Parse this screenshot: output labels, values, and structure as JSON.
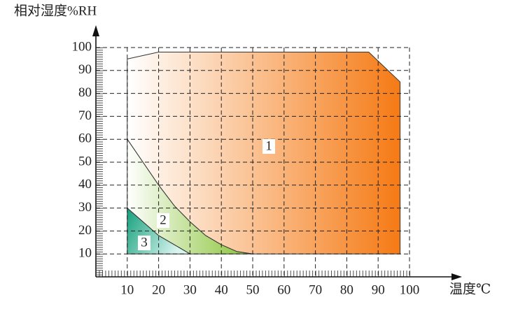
{
  "chart_data": {
    "type": "region",
    "y_label": "相对湿度%RH",
    "x_label": "温度℃",
    "xlim": [
      0,
      100
    ],
    "ylim": [
      0,
      100
    ],
    "xticks": [
      10,
      20,
      30,
      40,
      50,
      60,
      70,
      80,
      90,
      100
    ],
    "yticks": [
      10,
      20,
      30,
      40,
      50,
      60,
      70,
      80,
      90,
      100
    ],
    "grid": true,
    "series": [
      {
        "name": "1",
        "color": "#f57a14",
        "x": [
          10,
          20,
          87,
          97,
          97,
          50,
          45,
          40,
          35,
          30,
          25,
          20,
          15,
          10
        ],
        "y": [
          95,
          98,
          98,
          85,
          10,
          10,
          11,
          14,
          18,
          24,
          31,
          40,
          50,
          60
        ]
      },
      {
        "name": "2",
        "color": "#86c232",
        "x": [
          10,
          15,
          20,
          25,
          30,
          35,
          40,
          45,
          50,
          30,
          25,
          20,
          15,
          10
        ],
        "y": [
          60,
          50,
          40,
          31,
          24,
          18,
          14,
          11,
          10,
          10,
          14,
          18,
          24,
          30
        ]
      },
      {
        "name": "3",
        "color": "#14a07c",
        "x": [
          10,
          15,
          20,
          25,
          30,
          10
        ],
        "y": [
          30,
          24,
          18,
          14,
          10,
          10
        ]
      }
    ]
  }
}
